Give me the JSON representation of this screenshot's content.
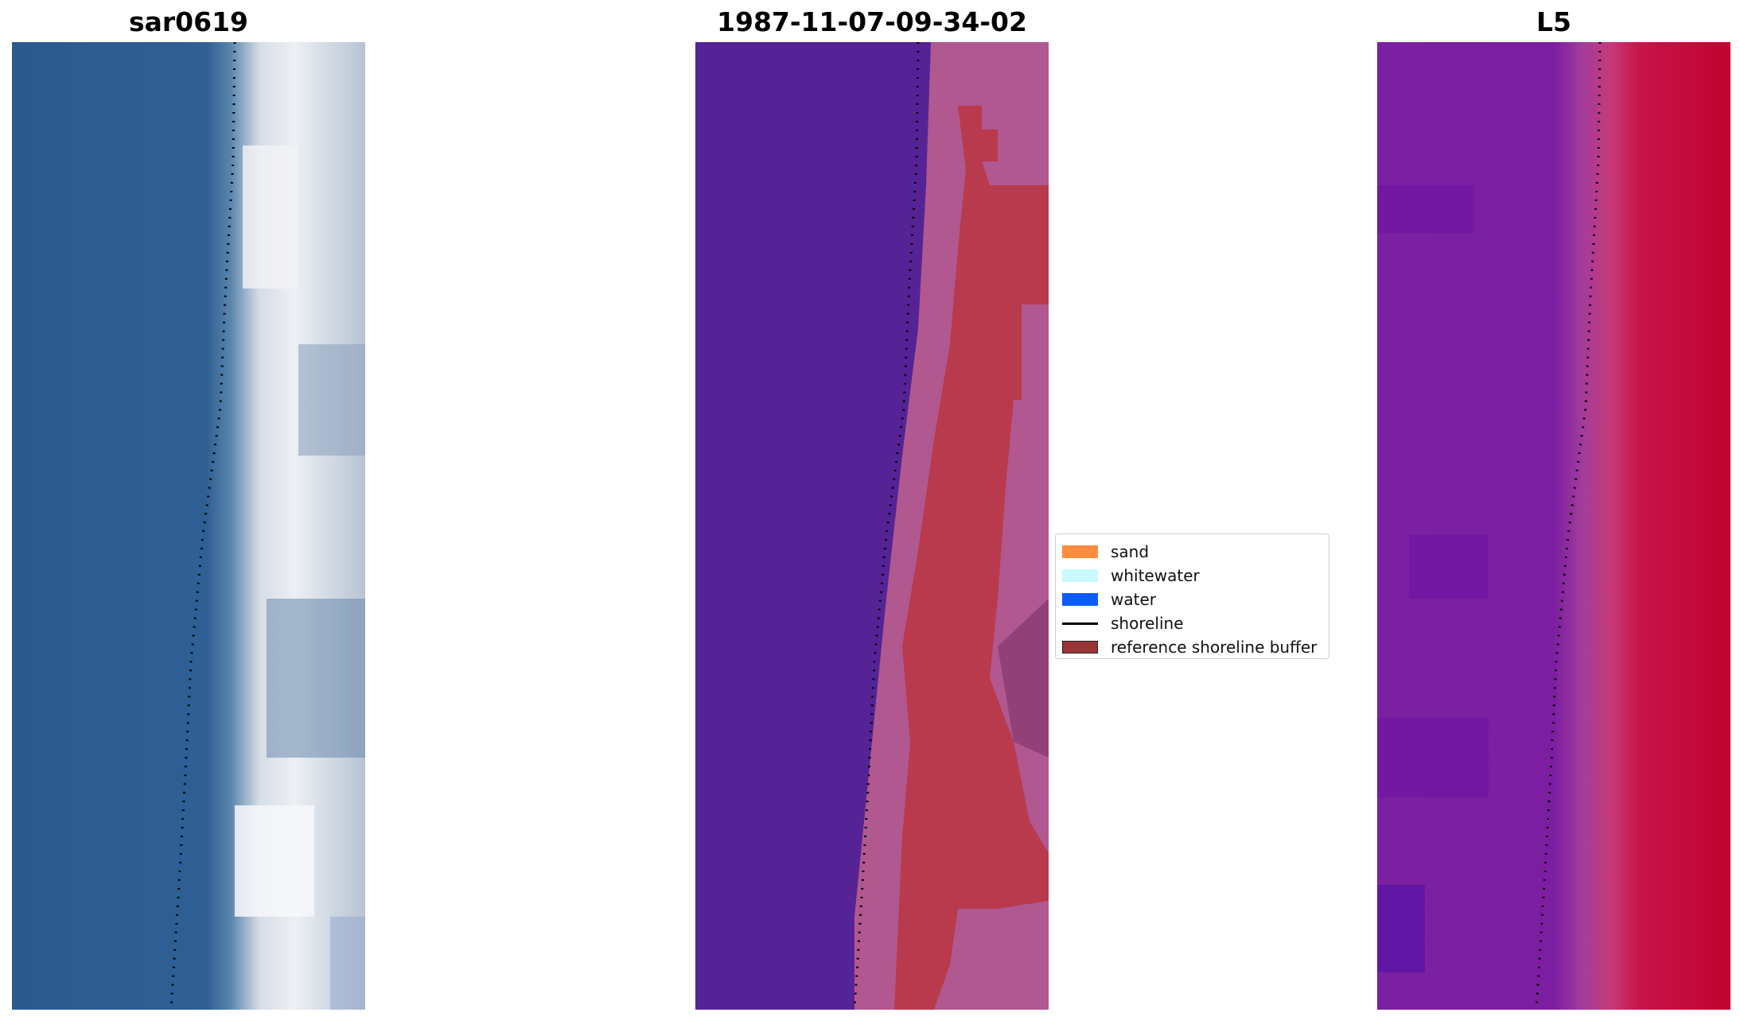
{
  "panels": [
    {
      "title": "sar0619"
    },
    {
      "title": "1987-11-07-09-34-02"
    },
    {
      "title": "L5"
    }
  ],
  "legend": {
    "items": [
      {
        "label": "sand",
        "color": "#ff8c3f",
        "kind": "patch"
      },
      {
        "label": "whitewater",
        "color": "#c7f9ff",
        "kind": "patch"
      },
      {
        "label": "water",
        "color": "#0a5cff",
        "kind": "patch"
      },
      {
        "label": "shoreline",
        "color": "#000000",
        "kind": "line"
      },
      {
        "label": "reference shoreline buffer",
        "color": "#9b3538",
        "kind": "patch-edged"
      }
    ]
  },
  "colors": {
    "rgb_water": "#2e5c91",
    "classified_water": "#552396",
    "classified_sand": "#b83a4c",
    "classified_mix": "#b0588f",
    "index_low": "#7a20a0",
    "index_high": "#c1032f"
  }
}
